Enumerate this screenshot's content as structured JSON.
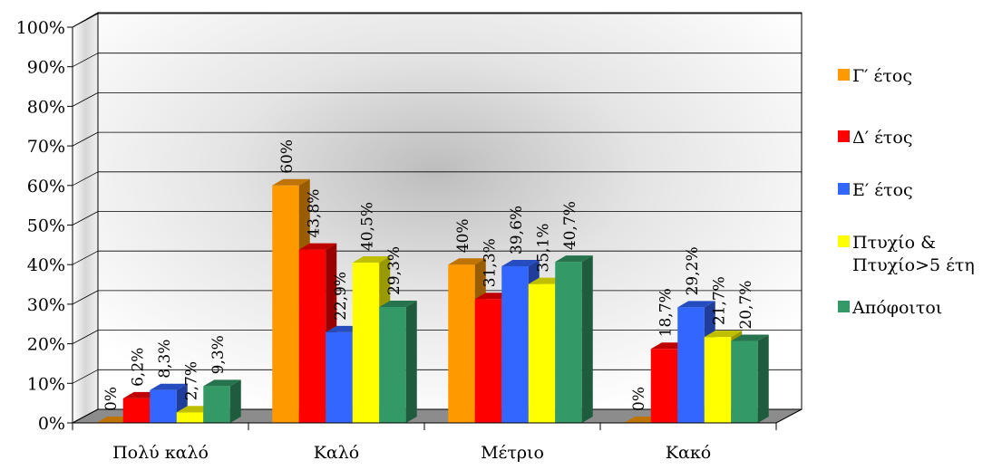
{
  "chart_data": {
    "type": "bar",
    "categories": [
      "Πολύ καλό",
      "Καλό",
      "Μέτριο",
      "Κακό"
    ],
    "series": [
      {
        "name": "Γ′ έτος",
        "color": "#ff9900",
        "values": [
          0,
          60,
          40,
          0
        ],
        "labels": [
          "0%",
          "60%",
          "40%",
          "0%"
        ]
      },
      {
        "name": "Δ′ έτος",
        "color": "#ff0000",
        "values": [
          6.2,
          43.8,
          31.3,
          18.7
        ],
        "labels": [
          "6,2%",
          "43,8%",
          "31,3%",
          "18,7%"
        ]
      },
      {
        "name": "Ε′ έτος",
        "color": "#3366ff",
        "values": [
          8.3,
          22.9,
          39.6,
          29.2
        ],
        "labels": [
          "8,3%",
          "22,9%",
          "39,6%",
          "29,2%"
        ]
      },
      {
        "name_lines": [
          "Πτυχίο &",
          "Πτυχίο>5 έτη"
        ],
        "color": "#ffff00",
        "values": [
          2.7,
          40.5,
          35.1,
          21.7
        ],
        "labels": [
          "2,7%",
          "40,5%",
          "35,1%",
          "21,7%"
        ]
      },
      {
        "name": "Απόφοιτοι",
        "color": "#339966",
        "values": [
          9.3,
          29.3,
          40.7,
          20.7
        ],
        "labels": [
          "9,3%",
          "29,3%",
          "40,7%",
          "20,7%"
        ]
      }
    ],
    "y_ticks": [
      "0%",
      "10%",
      "20%",
      "30%",
      "40%",
      "50%",
      "60%",
      "70%",
      "80%",
      "90%",
      "100%"
    ],
    "ylim": [
      0,
      100
    ],
    "grid": true,
    "legend_position": "right",
    "style": "3d-clustered-column"
  }
}
